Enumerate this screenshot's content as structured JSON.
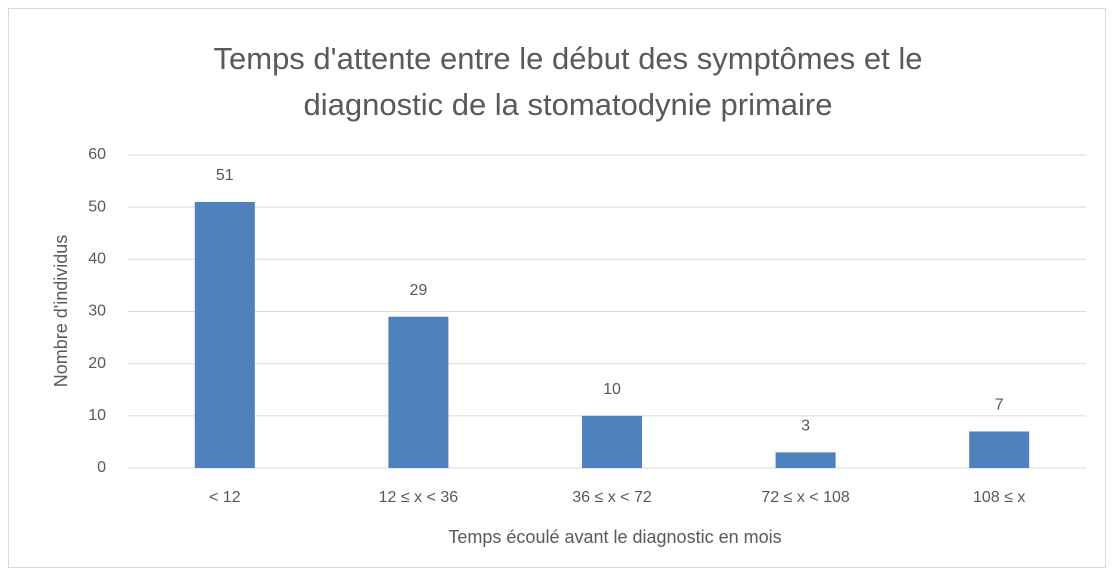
{
  "chart_data": {
    "type": "bar",
    "title": "Temps d'attente entre le début des symptômes et le diagnostic de la stomatodynie primaire",
    "categories": [
      "< 12",
      "12 ≤ x < 36",
      "36 ≤ x < 72",
      "72 ≤ x < 108",
      "108 ≤ x"
    ],
    "values": [
      51,
      29,
      10,
      3,
      7
    ],
    "color": "#4f81bd",
    "x_label": "Temps écoulé avant le diagnostic en mois",
    "y_label": "Nombre d'individus",
    "ylim": [
      0,
      60
    ],
    "yticks": [
      0,
      10,
      20,
      30,
      40,
      50,
      60
    ],
    "grid": true
  }
}
